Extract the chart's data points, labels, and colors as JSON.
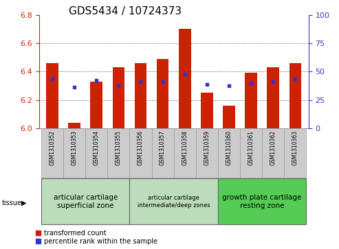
{
  "title": "GDS5434 / 10724373",
  "samples": [
    "GSM1310352",
    "GSM1310353",
    "GSM1310354",
    "GSM1310355",
    "GSM1310356",
    "GSM1310357",
    "GSM1310358",
    "GSM1310359",
    "GSM1310360",
    "GSM1310361",
    "GSM1310362",
    "GSM1310363"
  ],
  "bar_values": [
    6.46,
    6.04,
    6.33,
    6.43,
    6.46,
    6.49,
    6.7,
    6.25,
    6.16,
    6.39,
    6.43,
    6.46
  ],
  "blue_dot_values": [
    6.35,
    6.29,
    6.34,
    6.3,
    6.33,
    6.33,
    6.38,
    6.31,
    6.3,
    6.32,
    6.33,
    6.35
  ],
  "bar_color": "#cc2200",
  "dot_color": "#3333cc",
  "ylim": [
    6.0,
    6.8
  ],
  "yticks_left": [
    6.0,
    6.2,
    6.4,
    6.6,
    6.8
  ],
  "yticks_right": [
    0,
    25,
    50,
    75,
    100
  ],
  "tissue_groups": [
    {
      "label": "articular cartilage\nsuperficial zone",
      "start": 0,
      "end": 3,
      "color": "#bbddbb",
      "fontsize": 7.5
    },
    {
      "label": "articular cartilage\nintermediate/deep zones",
      "start": 4,
      "end": 7,
      "color": "#bbddbb",
      "fontsize": 6.0
    },
    {
      "label": "growth plate cartilage\nresting zone",
      "start": 8,
      "end": 11,
      "color": "#55cc55",
      "fontsize": 7.5
    }
  ],
  "tissue_label": "tissue",
  "legend_entries": [
    {
      "label": "transformed count",
      "color": "#cc2200"
    },
    {
      "label": "percentile rank within the sample",
      "color": "#3333cc"
    }
  ],
  "ylabel_left_color": "#cc2200",
  "ylabel_right_color": "#3333cc",
  "bar_width": 0.55,
  "title_fontsize": 11,
  "tick_fontsize": 8,
  "label_fontsize": 6.0
}
